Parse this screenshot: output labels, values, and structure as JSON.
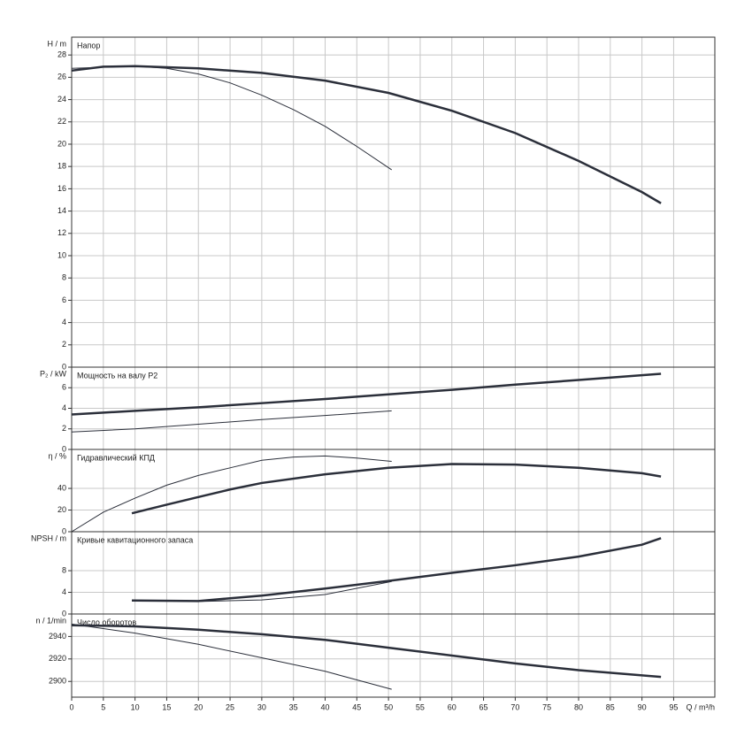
{
  "chart_data": [
    {
      "type": "line",
      "title": "Напор",
      "ylabel": "H / m",
      "xlim": [
        0,
        101.5
      ],
      "ylim": [
        0,
        29.6
      ],
      "yticks": [
        0,
        2,
        4,
        6,
        8,
        10,
        12,
        14,
        16,
        18,
        20,
        22,
        24,
        26,
        28
      ],
      "grid": true,
      "series": [
        {
          "color": "#2b2f3a",
          "line_width": 2.5,
          "x": [
            0,
            5,
            10,
            20,
            30,
            40,
            50,
            60,
            70,
            80,
            90,
            93
          ],
          "values": [
            26.6,
            26.95,
            27,
            26.8,
            26.4,
            25.7,
            24.6,
            23.0,
            21.0,
            18.5,
            15.7,
            14.7
          ]
        },
        {
          "color": "#2b2f3a",
          "line_width": 1,
          "x": [
            0,
            10,
            15,
            20,
            25,
            30,
            35,
            40,
            45,
            50.5
          ],
          "values": [
            26.8,
            27.0,
            26.8,
            26.3,
            25.5,
            24.4,
            23.1,
            21.6,
            19.8,
            17.7
          ]
        }
      ]
    },
    {
      "type": "line",
      "title": "Мощность на валу P2",
      "ylabel": "P₂ / kW",
      "xlim": [
        0,
        101.5
      ],
      "ylim": [
        0,
        8
      ],
      "yticks": [
        0,
        2,
        4,
        6
      ],
      "grid": true,
      "series": [
        {
          "color": "#2b2f3a",
          "line_width": 2.5,
          "x": [
            0,
            10,
            20,
            30,
            40,
            50,
            60,
            70,
            80,
            93
          ],
          "values": [
            3.4,
            3.75,
            4.1,
            4.5,
            4.9,
            5.35,
            5.8,
            6.3,
            6.75,
            7.35
          ]
        },
        {
          "color": "#2b2f3a",
          "line_width": 1,
          "x": [
            0,
            10,
            20,
            30,
            40,
            50.5
          ],
          "values": [
            1.7,
            2.0,
            2.45,
            2.9,
            3.3,
            3.75
          ]
        }
      ]
    },
    {
      "type": "line",
      "title": "Гидравлический КПД",
      "ylabel": "η / %",
      "xlim": [
        0,
        101.5
      ],
      "ylim": [
        0,
        76
      ],
      "yticks": [
        0,
        20,
        40
      ],
      "grid": true,
      "series": [
        {
          "color": "#2b2f3a",
          "line_width": 2.5,
          "x": [
            9.5,
            15,
            20,
            25,
            30,
            40,
            50,
            60,
            70,
            80,
            90,
            93
          ],
          "values": [
            17,
            25,
            32,
            39,
            45,
            53,
            59,
            62.5,
            62,
            59,
            54,
            51
          ]
        },
        {
          "color": "#2b2f3a",
          "line_width": 1,
          "x": [
            0,
            5,
            10,
            15,
            20,
            25,
            30,
            35,
            40,
            45,
            50.5
          ],
          "values": [
            0,
            18,
            31,
            43,
            52,
            59,
            66,
            69,
            70,
            68,
            65
          ]
        }
      ]
    },
    {
      "type": "line",
      "title": "Кривые кавитационного запаса",
      "ylabel": "NPSH / m",
      "xlim": [
        0,
        101.5
      ],
      "ylim": [
        0,
        15.2
      ],
      "yticks": [
        0,
        4,
        8
      ],
      "grid": true,
      "series": [
        {
          "color": "#2b2f3a",
          "line_width": 2.5,
          "x": [
            9.5,
            20,
            30,
            40,
            50,
            60,
            70,
            80,
            90,
            93
          ],
          "values": [
            2.5,
            2.4,
            3.4,
            4.7,
            6.1,
            7.6,
            9.0,
            10.6,
            12.8,
            14.0
          ]
        },
        {
          "color": "#2b2f3a",
          "line_width": 1,
          "x": [
            9.5,
            20,
            30,
            40,
            50.5
          ],
          "values": [
            2.5,
            2.3,
            2.6,
            3.6,
            6.0
          ]
        }
      ]
    },
    {
      "type": "line",
      "title": "Число оборотов",
      "ylabel": "n / 1/min",
      "xlabel": "Q / m³/h",
      "xlim": [
        0,
        101.5
      ],
      "ylim": [
        2886,
        2960
      ],
      "yticks": [
        2900,
        2920,
        2940
      ],
      "xticks": [
        0,
        5,
        10,
        15,
        20,
        25,
        30,
        35,
        40,
        45,
        50,
        55,
        60,
        65,
        70,
        75,
        80,
        85,
        90,
        95
      ],
      "grid": true,
      "series": [
        {
          "color": "#2b2f3a",
          "line_width": 2.5,
          "x": [
            0,
            10,
            20,
            30,
            40,
            50,
            60,
            70,
            80,
            93
          ],
          "values": [
            2950,
            2949,
            2946,
            2942,
            2937,
            2930,
            2923,
            2916,
            2910,
            2904
          ]
        },
        {
          "color": "#2b2f3a",
          "line_width": 1,
          "x": [
            0,
            10,
            20,
            30,
            40,
            50.5
          ],
          "values": [
            2951,
            2943,
            2933,
            2921,
            2909,
            2893
          ]
        }
      ]
    }
  ]
}
